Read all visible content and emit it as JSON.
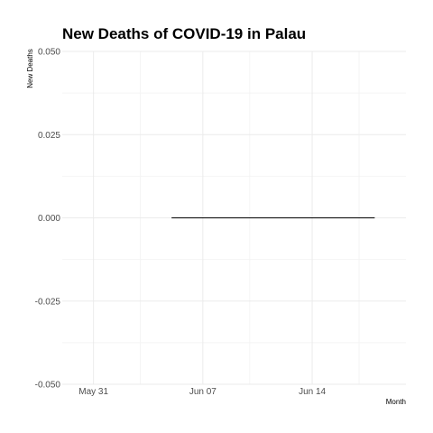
{
  "chart_data": {
    "type": "line",
    "title": "New Deaths of COVID-19 in Palau",
    "xlabel": "Month",
    "ylabel": "New Deaths",
    "x_range": [
      "2020-05-29",
      "2020-06-20"
    ],
    "x_ticks": [
      {
        "date": "2020-05-31",
        "label": "May 31"
      },
      {
        "date": "2020-06-07",
        "label": "Jun 07"
      },
      {
        "date": "2020-06-14",
        "label": "Jun 14"
      }
    ],
    "x_minor_ticks": [
      "2020-06-03",
      "2020-06-10",
      "2020-06-17"
    ],
    "ylim": [
      -0.05,
      0.05
    ],
    "y_ticks": [
      {
        "value": 0.05,
        "label": "0.050"
      },
      {
        "value": 0.025,
        "label": "0.025"
      },
      {
        "value": 0.0,
        "label": "0.000"
      },
      {
        "value": -0.025,
        "label": "-0.025"
      },
      {
        "value": -0.05,
        "label": "-0.050"
      }
    ],
    "series": [
      {
        "color": "#000000",
        "points": [
          {
            "x": "2020-06-05",
            "y": 0
          },
          {
            "x": "2020-06-18",
            "y": 0
          }
        ]
      }
    ],
    "grid": true,
    "legend": "none"
  }
}
